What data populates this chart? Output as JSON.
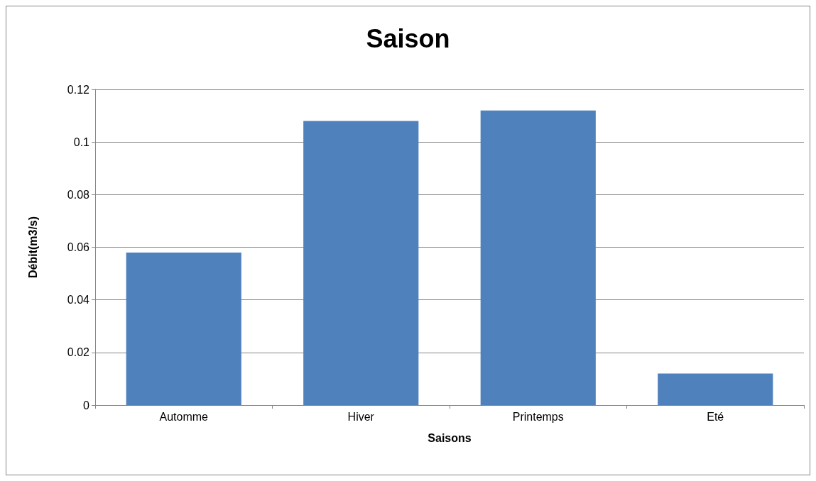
{
  "chart_data": {
    "type": "bar",
    "title": "Saison",
    "xlabel": "Saisons",
    "ylabel": "Débit(m3/s)",
    "categories": [
      "Automme",
      "Hiver",
      "Printemps",
      "Eté"
    ],
    "values": [
      0.058,
      0.108,
      0.112,
      0.012
    ],
    "color": "#4f81bd",
    "ylim": [
      0,
      0.12
    ],
    "yticks": [
      0,
      0.02,
      0.04,
      0.06,
      0.08,
      0.1,
      0.12
    ],
    "grid": "y"
  }
}
